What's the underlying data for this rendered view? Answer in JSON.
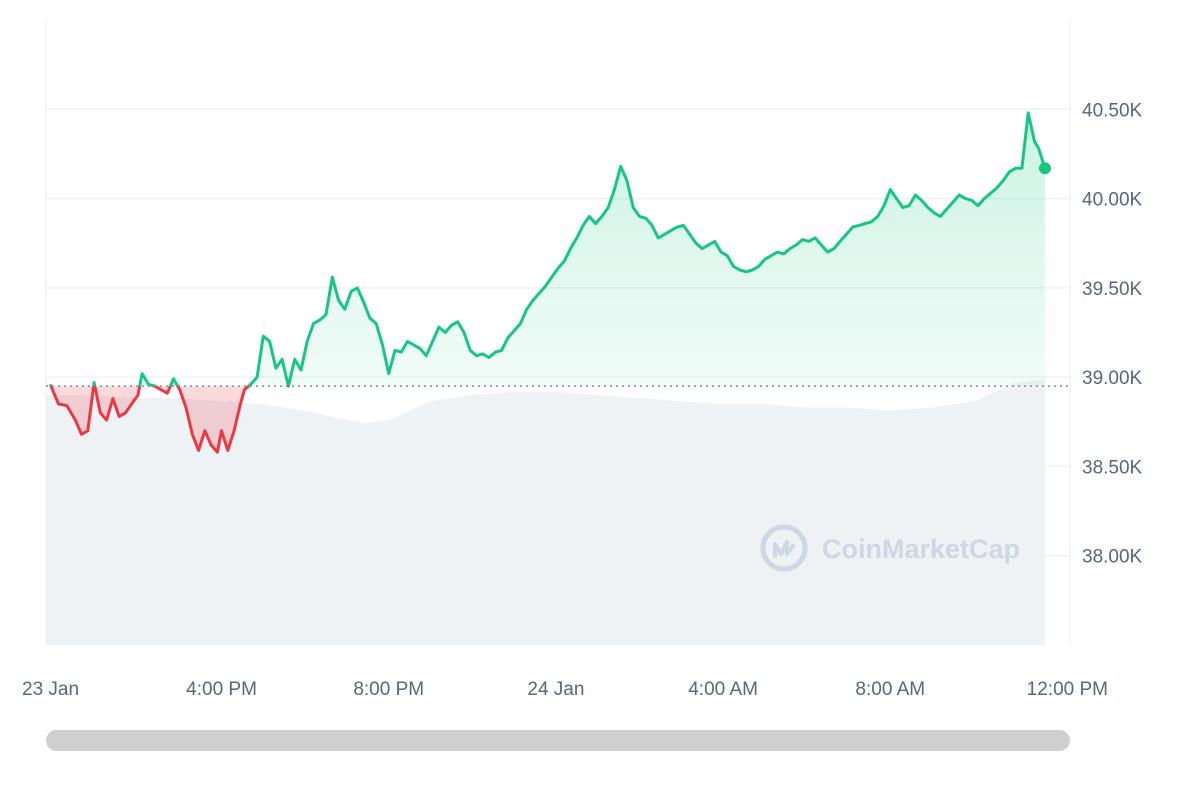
{
  "chart_data": {
    "type": "line",
    "title": "",
    "xlabel": "",
    "ylabel": "",
    "baseline": 38950,
    "ylim": [
      37500,
      41000
    ],
    "yticks": [
      {
        "value": 40500,
        "label": "40.50K"
      },
      {
        "value": 40000,
        "label": "40.00K"
      },
      {
        "value": 39500,
        "label": "39.50K"
      },
      {
        "value": 39000,
        "label": "39.00K"
      },
      {
        "value": 38500,
        "label": "38.50K"
      },
      {
        "value": 38000,
        "label": "38.00K"
      }
    ],
    "xticks": [
      {
        "label": "23 Jan",
        "t": 0
      },
      {
        "label": "4:00 PM",
        "t": 4
      },
      {
        "label": "8:00 PM",
        "t": 8
      },
      {
        "label": "24 Jan",
        "t": 12
      },
      {
        "label": "4:00 AM",
        "t": 16
      },
      {
        "label": "8:00 AM",
        "t": 20
      },
      {
        "label": "12:00 PM",
        "t": 24
      }
    ],
    "xrange": [
      -0.2,
      24.3
    ],
    "series": [
      {
        "points": [
          [
            -0.1,
            38960
          ],
          [
            0.1,
            38850
          ],
          [
            0.3,
            38840
          ],
          [
            0.5,
            38760
          ],
          [
            0.65,
            38680
          ],
          [
            0.8,
            38700
          ],
          [
            0.95,
            38970
          ],
          [
            1.1,
            38800
          ],
          [
            1.25,
            38760
          ],
          [
            1.4,
            38880
          ],
          [
            1.55,
            38780
          ],
          [
            1.7,
            38800
          ],
          [
            1.85,
            38850
          ],
          [
            2.0,
            38900
          ],
          [
            2.1,
            39020
          ],
          [
            2.25,
            38960
          ],
          [
            2.4,
            38950
          ],
          [
            2.55,
            38930
          ],
          [
            2.7,
            38910
          ],
          [
            2.85,
            38990
          ],
          [
            3.0,
            38930
          ],
          [
            3.15,
            38830
          ],
          [
            3.3,
            38680
          ],
          [
            3.45,
            38590
          ],
          [
            3.6,
            38700
          ],
          [
            3.75,
            38620
          ],
          [
            3.9,
            38580
          ],
          [
            4.0,
            38700
          ],
          [
            4.15,
            38590
          ],
          [
            4.3,
            38700
          ],
          [
            4.45,
            38850
          ],
          [
            4.55,
            38930
          ],
          [
            4.7,
            38960
          ],
          [
            4.85,
            39000
          ],
          [
            5.0,
            39230
          ],
          [
            5.15,
            39200
          ],
          [
            5.3,
            39050
          ],
          [
            5.45,
            39100
          ],
          [
            5.6,
            38950
          ],
          [
            5.75,
            39100
          ],
          [
            5.9,
            39040
          ],
          [
            6.05,
            39200
          ],
          [
            6.2,
            39300
          ],
          [
            6.35,
            39320
          ],
          [
            6.5,
            39350
          ],
          [
            6.65,
            39560
          ],
          [
            6.8,
            39430
          ],
          [
            6.95,
            39380
          ],
          [
            7.1,
            39480
          ],
          [
            7.25,
            39500
          ],
          [
            7.4,
            39420
          ],
          [
            7.55,
            39330
          ],
          [
            7.7,
            39300
          ],
          [
            7.85,
            39180
          ],
          [
            8.0,
            39020
          ],
          [
            8.15,
            39150
          ],
          [
            8.3,
            39140
          ],
          [
            8.45,
            39200
          ],
          [
            8.6,
            39180
          ],
          [
            8.75,
            39160
          ],
          [
            8.9,
            39120
          ],
          [
            9.05,
            39200
          ],
          [
            9.2,
            39280
          ],
          [
            9.35,
            39250
          ],
          [
            9.5,
            39290
          ],
          [
            9.65,
            39310
          ],
          [
            9.8,
            39250
          ],
          [
            9.95,
            39150
          ],
          [
            10.1,
            39120
          ],
          [
            10.25,
            39130
          ],
          [
            10.4,
            39110
          ],
          [
            10.55,
            39140
          ],
          [
            10.7,
            39150
          ],
          [
            10.85,
            39220
          ],
          [
            11.0,
            39260
          ],
          [
            11.15,
            39300
          ],
          [
            11.3,
            39380
          ],
          [
            11.45,
            39430
          ],
          [
            11.6,
            39470
          ],
          [
            11.75,
            39510
          ],
          [
            11.9,
            39560
          ],
          [
            12.05,
            39610
          ],
          [
            12.2,
            39650
          ],
          [
            12.35,
            39720
          ],
          [
            12.5,
            39780
          ],
          [
            12.65,
            39850
          ],
          [
            12.8,
            39900
          ],
          [
            12.95,
            39860
          ],
          [
            13.1,
            39900
          ],
          [
            13.25,
            39950
          ],
          [
            13.4,
            40050
          ],
          [
            13.55,
            40180
          ],
          [
            13.7,
            40100
          ],
          [
            13.85,
            39950
          ],
          [
            14.0,
            39900
          ],
          [
            14.15,
            39890
          ],
          [
            14.3,
            39850
          ],
          [
            14.45,
            39780
          ],
          [
            14.6,
            39800
          ],
          [
            14.75,
            39820
          ],
          [
            14.9,
            39840
          ],
          [
            15.05,
            39850
          ],
          [
            15.2,
            39800
          ],
          [
            15.35,
            39750
          ],
          [
            15.5,
            39720
          ],
          [
            15.65,
            39740
          ],
          [
            15.8,
            39760
          ],
          [
            15.95,
            39700
          ],
          [
            16.1,
            39680
          ],
          [
            16.25,
            39620
          ],
          [
            16.4,
            39600
          ],
          [
            16.55,
            39590
          ],
          [
            16.7,
            39600
          ],
          [
            16.85,
            39620
          ],
          [
            17.0,
            39660
          ],
          [
            17.15,
            39680
          ],
          [
            17.3,
            39700
          ],
          [
            17.45,
            39690
          ],
          [
            17.6,
            39720
          ],
          [
            17.75,
            39740
          ],
          [
            17.9,
            39770
          ],
          [
            18.05,
            39760
          ],
          [
            18.2,
            39780
          ],
          [
            18.35,
            39740
          ],
          [
            18.5,
            39700
          ],
          [
            18.65,
            39720
          ],
          [
            18.8,
            39760
          ],
          [
            18.95,
            39800
          ],
          [
            19.1,
            39840
          ],
          [
            19.25,
            39850
          ],
          [
            19.4,
            39860
          ],
          [
            19.55,
            39870
          ],
          [
            19.7,
            39900
          ],
          [
            19.85,
            39960
          ],
          [
            20.0,
            40050
          ],
          [
            20.15,
            40000
          ],
          [
            20.3,
            39950
          ],
          [
            20.45,
            39960
          ],
          [
            20.6,
            40020
          ],
          [
            20.75,
            39990
          ],
          [
            20.9,
            39950
          ],
          [
            21.05,
            39920
          ],
          [
            21.2,
            39900
          ],
          [
            21.35,
            39940
          ],
          [
            21.5,
            39980
          ],
          [
            21.65,
            40020
          ],
          [
            21.8,
            40000
          ],
          [
            21.95,
            39990
          ],
          [
            22.1,
            39960
          ],
          [
            22.25,
            40000
          ],
          [
            22.4,
            40030
          ],
          [
            22.55,
            40060
          ],
          [
            22.7,
            40100
          ],
          [
            22.85,
            40150
          ],
          [
            23.0,
            40170
          ],
          [
            23.15,
            40170
          ],
          [
            23.3,
            40480
          ],
          [
            23.45,
            40320
          ],
          [
            23.55,
            40280
          ],
          [
            23.7,
            40170
          ]
        ]
      }
    ],
    "volume": [
      [
        -0.2,
        0.6
      ],
      [
        1.0,
        0.6
      ],
      [
        2.0,
        0.605
      ],
      [
        3.0,
        0.605
      ],
      [
        4.0,
        0.61
      ],
      [
        5.0,
        0.615
      ],
      [
        6.0,
        0.625
      ],
      [
        7.0,
        0.64
      ],
      [
        7.5,
        0.645
      ],
      [
        8.0,
        0.64
      ],
      [
        8.5,
        0.625
      ],
      [
        9.0,
        0.61
      ],
      [
        10.0,
        0.6
      ],
      [
        11.0,
        0.595
      ],
      [
        12.0,
        0.595
      ],
      [
        13.0,
        0.6
      ],
      [
        14.0,
        0.605
      ],
      [
        15.0,
        0.61
      ],
      [
        16.0,
        0.615
      ],
      [
        17.0,
        0.615
      ],
      [
        18.0,
        0.62
      ],
      [
        19.0,
        0.62
      ],
      [
        20.0,
        0.625
      ],
      [
        21.0,
        0.62
      ],
      [
        22.0,
        0.61
      ],
      [
        23.0,
        0.58
      ],
      [
        23.7,
        0.575
      ]
    ],
    "colors": {
      "up": "#16c784",
      "down": "#ea3943",
      "grid": "#eff2f5",
      "axis_text": "#58667e",
      "volume": "#eff2f5",
      "baseline": "#808a9d"
    }
  },
  "watermark": {
    "text": "CoinMarketCap",
    "icon": "coinmarketcap-logo-icon"
  },
  "scrollbar": {
    "value": 1.0
  }
}
